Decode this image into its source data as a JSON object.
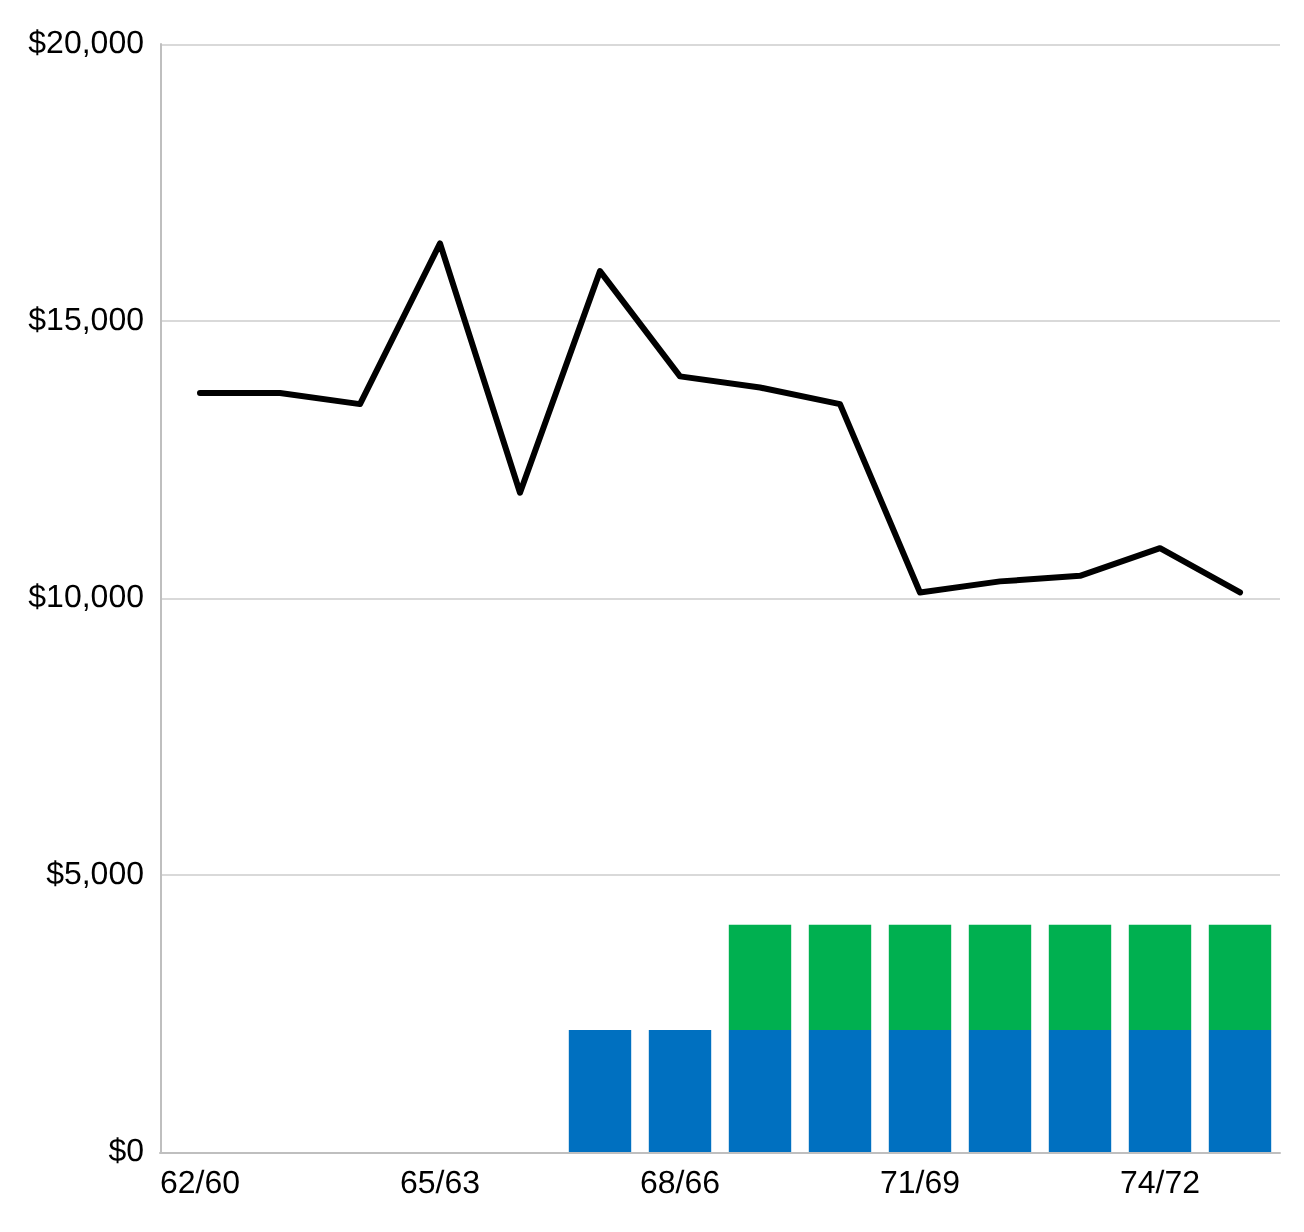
{
  "chart_data": {
    "type": "bar",
    "stacked": true,
    "categories": [
      "62/60",
      null,
      null,
      "65/63",
      null,
      null,
      "68/66",
      null,
      null,
      "71/69",
      null,
      null,
      "74/72",
      null
    ],
    "series": [
      {
        "color": "#0070c0",
        "values": [
          null,
          null,
          null,
          null,
          null,
          2200,
          2200,
          2200,
          2200,
          2200,
          2200,
          2200,
          2200,
          2200
        ]
      },
      {
        "color": "#00b050",
        "values": [
          null,
          null,
          null,
          null,
          null,
          null,
          null,
          1900,
          1900,
          1900,
          1900,
          1900,
          1900,
          1900
        ]
      },
      {
        "type": "line",
        "color": "#000000",
        "values": [
          13700,
          13700,
          13500,
          16400,
          11900,
          15900,
          14000,
          13800,
          13500,
          10100,
          10300,
          10400,
          10900,
          10100
        ]
      }
    ],
    "ylim": [
      0,
      20000
    ],
    "yticks": [
      {
        "value": 0,
        "label": "$0"
      },
      {
        "value": 5000,
        "label": "$5,000"
      },
      {
        "value": 10000,
        "label": "$10,000"
      },
      {
        "value": 15000,
        "label": "$15,000"
      },
      {
        "value": 20000,
        "label": "$20,000"
      }
    ],
    "grid": "y",
    "marker": "none",
    "line_style": "solid"
  }
}
